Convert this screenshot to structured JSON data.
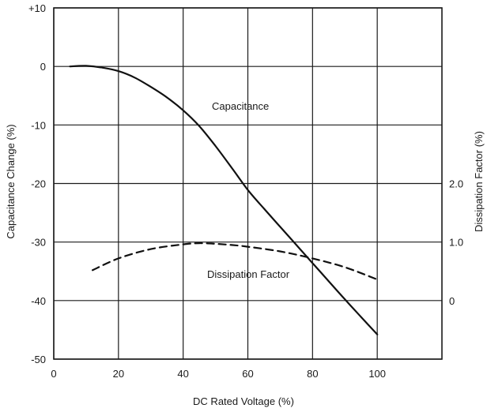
{
  "chart_data": {
    "type": "line",
    "xlabel": "DC Rated Voltage (%)",
    "ylabel": "Capacitance Change (%)",
    "y2label": "Dissipation Factor (%)",
    "xlim": [
      0,
      120
    ],
    "ylim": [
      -50,
      10
    ],
    "y2lim": [
      -1.0,
      5.0
    ],
    "grid": true,
    "x_ticks": [
      "0",
      "20",
      "40",
      "60",
      "80",
      "100"
    ],
    "y_ticks": [
      "+10",
      "0",
      "-10",
      "-20",
      "-30",
      "-40",
      "-50"
    ],
    "y_tick_values": [
      10,
      0,
      -10,
      -20,
      -30,
      -40,
      -50
    ],
    "y2_ticks": [
      "2.0",
      "1.0",
      "0"
    ],
    "y2_tick_values": [
      2.0,
      1.0,
      0
    ],
    "annotations": {
      "capacitance": "Capacitance",
      "dissipation": "Dissipation Factor"
    },
    "series": [
      {
        "name": "Capacitance",
        "axis": "left",
        "style": "solid",
        "x": [
          5,
          10,
          15,
          20,
          25,
          30,
          35,
          40,
          45,
          50,
          55,
          60,
          65,
          70,
          75,
          80,
          85,
          90,
          95,
          100
        ],
        "y": [
          0,
          0.1,
          -0.2,
          -0.8,
          -1.9,
          -3.5,
          -5.3,
          -7.5,
          -10.2,
          -13.6,
          -17.3,
          -21.1,
          -24.3,
          -27.4,
          -30.5,
          -33.6,
          -36.7,
          -39.8,
          -42.8,
          -45.8
        ]
      },
      {
        "name": "Dissipation Factor",
        "axis": "right",
        "style": "dashed",
        "x": [
          12,
          20,
          30,
          40,
          45,
          50,
          55,
          60,
          70,
          80,
          90,
          100
        ],
        "y": [
          0.52,
          0.72,
          0.88,
          0.96,
          0.98,
          0.97,
          0.95,
          0.92,
          0.84,
          0.72,
          0.57,
          0.36
        ]
      }
    ]
  }
}
